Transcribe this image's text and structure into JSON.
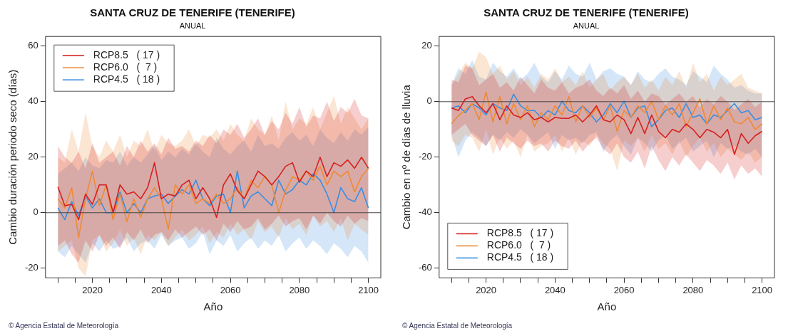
{
  "chart_data": [
    {
      "type": "line",
      "title": "SANTA CRUZ DE TENERIFE (TENERIFE)",
      "subtitle": "ANUAL",
      "xlabel": "Año",
      "ylabel": "Cambio duración periodo seco (días)",
      "x": [
        2010,
        2012,
        2014,
        2016,
        2018,
        2020,
        2022,
        2024,
        2026,
        2028,
        2030,
        2032,
        2034,
        2036,
        2038,
        2040,
        2042,
        2044,
        2046,
        2048,
        2050,
        2052,
        2054,
        2056,
        2058,
        2060,
        2062,
        2064,
        2066,
        2068,
        2070,
        2072,
        2074,
        2076,
        2078,
        2080,
        2082,
        2084,
        2086,
        2088,
        2090,
        2092,
        2094,
        2096,
        2098,
        2100
      ],
      "xlim": [
        2006.4,
        2103.6
      ],
      "xticks": [
        {
          "value": 2010,
          "label": null
        },
        {
          "value": 2015,
          "label": null
        },
        2020,
        {
          "value": 2025,
          "label": null
        },
        {
          "value": 2030,
          "label": null
        },
        {
          "value": 2035,
          "label": null
        },
        2040,
        {
          "value": 2045,
          "label": null
        },
        {
          "value": 2050,
          "label": null
        },
        {
          "value": 2055,
          "label": null
        },
        2060,
        {
          "value": 2065,
          "label": null
        },
        {
          "value": 2070,
          "label": null
        },
        {
          "value": 2075,
          "label": null
        },
        2080,
        {
          "value": 2085,
          "label": null
        },
        {
          "value": 2090,
          "label": null
        },
        {
          "value": 2095,
          "label": null
        },
        2100
      ],
      "ylim": [
        -23.5,
        63.5
      ],
      "yticks": [
        -20,
        0,
        20,
        40,
        60
      ],
      "grid": false,
      "legend": "top left",
      "line_style": "solid",
      "marker": "none",
      "ref_lines": [
        {
          "axis": "y",
          "value": 0,
          "color": "#444444"
        }
      ],
      "annotations": [
        "© Agencia Estatal de Meteorología"
      ],
      "series": [
        {
          "name": "RCP8.5   ( 17 )",
          "color": "#d62020",
          "values": [
            9.3,
            2.5,
            3,
            -2.5,
            6.7,
            3,
            10,
            10,
            0,
            10,
            6.7,
            7.5,
            5,
            9,
            18,
            5,
            6.7,
            6,
            10,
            11.7,
            5,
            9,
            5,
            -1.7,
            10,
            14,
            8,
            5,
            10,
            15,
            13,
            10,
            13,
            16.7,
            18,
            11,
            15,
            13,
            20,
            13,
            18,
            16.7,
            19,
            16,
            20,
            16
          ],
          "upper": [
            24,
            20,
            18,
            22,
            16,
            25,
            18,
            20,
            22,
            17,
            24,
            20,
            26,
            22,
            25,
            21,
            27,
            23,
            24,
            22,
            26,
            24,
            28,
            25,
            30,
            28,
            32,
            27,
            30,
            34,
            28,
            33,
            30,
            36,
            32,
            38,
            31,
            35,
            34,
            40,
            33,
            38,
            36,
            41,
            35,
            34
          ],
          "lower": [
            -12,
            -10,
            -15,
            -18,
            -10,
            -14,
            -8,
            -12,
            -9,
            -13,
            -7,
            -10,
            -6,
            -11,
            -8,
            -7,
            -10,
            -6,
            -9,
            -7,
            -5,
            -8,
            -6,
            -10,
            -4,
            -7,
            -3,
            -6,
            -5,
            -2,
            -6,
            -4,
            -1,
            -5,
            -3,
            -2,
            -6,
            -1,
            -4,
            0,
            -3,
            -5,
            -1,
            -4,
            -2,
            -3
          ]
        },
        {
          "name": "RCP6.0   (  7 )",
          "color": "#ee8a35",
          "values": [
            5,
            1.7,
            9,
            -9,
            5,
            15,
            2.5,
            10,
            -2.5,
            6.7,
            -3.3,
            5,
            -1.7,
            5,
            9,
            5,
            -6,
            10,
            6.7,
            10,
            3.3,
            5,
            3.3,
            6.7,
            3.3,
            5,
            9,
            5,
            11.7,
            9,
            13,
            10,
            0,
            8,
            13,
            11.7,
            15,
            11.7,
            16.7,
            10,
            15,
            13,
            15,
            7.5,
            13,
            16
          ],
          "upper": [
            20,
            18,
            30,
            22,
            36,
            24,
            20,
            26,
            22,
            28,
            20,
            26,
            24,
            30,
            22,
            28,
            25,
            24,
            26,
            30,
            24,
            28,
            27,
            30,
            26,
            32,
            28,
            26,
            34,
            30,
            28,
            35,
            26,
            40,
            30,
            34,
            32,
            38,
            30,
            36,
            42,
            32,
            38,
            34,
            30,
            34
          ],
          "lower": [
            -14,
            -12,
            -10,
            -20,
            -23,
            -10,
            -8,
            -14,
            -11,
            -6,
            -12,
            -9,
            -15,
            -8,
            -10,
            -7,
            -12,
            -9,
            -6,
            -10,
            -8,
            -5,
            -11,
            -7,
            -9,
            -4,
            -8,
            -6,
            -10,
            -3,
            -7,
            -5,
            -9,
            -2,
            -6,
            -4,
            -8,
            -1,
            -5,
            -3,
            -7,
            -2,
            -10,
            -4,
            -6,
            -8
          ]
        },
        {
          "name": "RCP4.5   ( 18 )",
          "color": "#3a8ee0",
          "values": [
            1.7,
            -2.5,
            4,
            -1,
            6,
            1.7,
            5,
            0,
            0,
            7.5,
            0,
            3.3,
            0,
            5,
            6,
            6.7,
            3.3,
            6,
            8.3,
            6.7,
            11.7,
            5,
            2.5,
            6,
            6.7,
            0,
            15,
            1.7,
            6,
            7.5,
            5,
            2.5,
            11.7,
            6.7,
            8.3,
            11.7,
            10,
            14,
            11.7,
            6.7,
            0,
            9,
            5,
            4,
            9,
            1.7
          ],
          "upper": [
            14,
            16,
            18,
            15,
            20,
            17,
            16,
            19,
            18,
            22,
            17,
            20,
            18,
            21,
            24,
            19,
            22,
            20,
            23,
            21,
            25,
            22,
            20,
            27,
            23,
            21,
            24,
            26,
            22,
            28,
            24,
            25,
            23,
            27,
            29,
            26,
            28,
            24,
            30,
            27,
            25,
            29,
            26,
            30,
            28,
            31
          ],
          "lower": [
            -14,
            -16,
            -12,
            -15,
            -18,
            -11,
            -14,
            -10,
            -13,
            -12,
            -9,
            -14,
            -11,
            -10,
            -13,
            -8,
            -12,
            -10,
            -9,
            -13,
            -11,
            -7,
            -15,
            -10,
            -12,
            -8,
            -14,
            -11,
            -9,
            -13,
            -10,
            -12,
            -8,
            -14,
            -11,
            -9,
            -13,
            -10,
            -12,
            -15,
            -11,
            -13,
            -16,
            -12,
            -14,
            -18
          ]
        }
      ]
    },
    {
      "type": "line",
      "title": "SANTA CRUZ DE TENERIFE (TENERIFE)",
      "subtitle": "ANUAL",
      "xlabel": "Año",
      "ylabel": "Cambio en nº de días de lluvia",
      "x": [
        2010,
        2012,
        2014,
        2016,
        2018,
        2020,
        2022,
        2024,
        2026,
        2028,
        2030,
        2032,
        2034,
        2036,
        2038,
        2040,
        2042,
        2044,
        2046,
        2048,
        2050,
        2052,
        2054,
        2056,
        2058,
        2060,
        2062,
        2064,
        2066,
        2068,
        2070,
        2072,
        2074,
        2076,
        2078,
        2080,
        2082,
        2084,
        2086,
        2088,
        2090,
        2092,
        2094,
        2096,
        2098,
        2100
      ],
      "xlim": [
        2006.4,
        2103.6
      ],
      "xticks": [
        {
          "value": 2010,
          "label": null
        },
        {
          "value": 2015,
          "label": null
        },
        2020,
        {
          "value": 2025,
          "label": null
        },
        {
          "value": 2030,
          "label": null
        },
        {
          "value": 2035,
          "label": null
        },
        2040,
        {
          "value": 2045,
          "label": null
        },
        {
          "value": 2050,
          "label": null
        },
        {
          "value": 2055,
          "label": null
        },
        2060,
        {
          "value": 2065,
          "label": null
        },
        {
          "value": 2070,
          "label": null
        },
        {
          "value": 2075,
          "label": null
        },
        2080,
        {
          "value": 2085,
          "label": null
        },
        {
          "value": 2090,
          "label": null
        },
        {
          "value": 2095,
          "label": null
        },
        2100
      ],
      "ylim": [
        -63.5,
        23.5
      ],
      "yticks": [
        -60,
        -40,
        -20,
        0,
        20
      ],
      "grid": false,
      "legend": "bottom left",
      "line_style": "solid",
      "marker": "none",
      "ref_lines": [
        {
          "axis": "y",
          "value": 0,
          "color": "#444444"
        }
      ],
      "annotations": [
        "© Agencia Estatal de Meteorología"
      ],
      "series": [
        {
          "name": "RCP8.5   ( 17 )",
          "color": "#d62020",
          "values": [
            -2.3,
            -3.2,
            1,
            1.8,
            -1.5,
            -4,
            -0.7,
            -6.5,
            -1.5,
            -4.8,
            -5.7,
            -4,
            -6.5,
            -5.7,
            -7.3,
            -5.7,
            -6,
            -6,
            -4.8,
            -7.3,
            -4.8,
            -1.5,
            -6.5,
            -7.3,
            -4.8,
            -6.5,
            -11.5,
            -5.7,
            -11.5,
            -4.8,
            -10.7,
            -13,
            -10,
            -11,
            -8,
            -10,
            -13,
            -10,
            -11,
            -13,
            -10,
            -19,
            -11.5,
            -15,
            -12.3,
            -10.7
          ],
          "upper": [
            8,
            7,
            13,
            12,
            6,
            8,
            10,
            5,
            7,
            4,
            9,
            6,
            3,
            8,
            5,
            4,
            7,
            3,
            5,
            6,
            8,
            4,
            2,
            5,
            3,
            6,
            1,
            4,
            0,
            3,
            2,
            -1,
            1,
            3,
            0,
            2,
            -2,
            1,
            -1,
            2,
            0,
            -3,
            -1,
            1,
            -2,
            0
          ],
          "lower": [
            -12,
            -10,
            -8,
            -12,
            -14,
            -16,
            -12,
            -18,
            -13,
            -15,
            -17,
            -14,
            -16,
            -15,
            -18,
            -14,
            -16,
            -17,
            -14,
            -18,
            -15,
            -13,
            -17,
            -19,
            -15,
            -20,
            -22,
            -18,
            -24,
            -16,
            -21,
            -25,
            -20,
            -23,
            -19,
            -22,
            -25,
            -21,
            -23,
            -26,
            -22,
            -28,
            -23,
            -26,
            -24,
            -27
          ]
        },
        {
          "name": "RCP6.0   (  7 )",
          "color": "#ee8a35",
          "values": [
            -8,
            -5,
            -3,
            -0.7,
            -6.5,
            3.5,
            -7.3,
            1.8,
            -8,
            -0.7,
            -6.5,
            -1.5,
            -9,
            -4,
            -6.5,
            -1.5,
            -4.8,
            1.8,
            -7.3,
            -1.5,
            -5.7,
            -2.3,
            -6.5,
            -1.5,
            -10.7,
            -3.2,
            -5.7,
            -1.5,
            -4,
            0.2,
            -6.5,
            -1.5,
            -4.8,
            -0.7,
            -9,
            -4,
            1,
            -8,
            -1.5,
            -6.5,
            -2.3,
            -7.3,
            -8,
            -5.7,
            -10,
            -8
          ],
          "upper": [
            6,
            10,
            14,
            12,
            18,
            16,
            10,
            13,
            8,
            11,
            6,
            9,
            5,
            10,
            8,
            12,
            7,
            9,
            6,
            11,
            5,
            8,
            10,
            4,
            7,
            9,
            6,
            10,
            5,
            8,
            4,
            9,
            6,
            11,
            5,
            14,
            7,
            10,
            4,
            9,
            6,
            8,
            10,
            5,
            4,
            3
          ],
          "lower": [
            -14,
            -16,
            -12,
            -13,
            -18,
            -10,
            -19,
            -13,
            -17,
            -14,
            -20,
            -12,
            -18,
            -16,
            -15,
            -12,
            -18,
            -13,
            -19,
            -14,
            -16,
            -12,
            -15,
            -17,
            -25,
            -14,
            -16,
            -13,
            -18,
            -12,
            -17,
            -15,
            -19,
            -14,
            -20,
            -16,
            -13,
            -18,
            -15,
            -20,
            -17,
            -19,
            -21,
            -18,
            -22,
            -20
          ]
        },
        {
          "name": "RCP4.5   ( 18 )",
          "color": "#3a8ee0",
          "values": [
            -2.3,
            -1.5,
            -4,
            -0.7,
            -2.3,
            -4.8,
            -0.7,
            -2.3,
            -3.2,
            2.7,
            -1.5,
            -3.2,
            -3.2,
            -5.7,
            -3.2,
            -4.8,
            0.2,
            -3.2,
            -4,
            -1.5,
            -4,
            -7.3,
            -4.8,
            -0.7,
            -4,
            0.2,
            -5.7,
            -2.3,
            -1.5,
            -9,
            -6.5,
            -3.2,
            -2.3,
            -5.7,
            -0.7,
            -5.7,
            -4.8,
            -8,
            -4.8,
            -5.7,
            -3.2,
            -0.7,
            -4,
            -3.2,
            -6.5,
            -5.7
          ],
          "upper": [
            6,
            12,
            10,
            15,
            9,
            8,
            14,
            11,
            9,
            12,
            8,
            10,
            14,
            9,
            7,
            11,
            8,
            13,
            10,
            9,
            14,
            8,
            11,
            12,
            10,
            9,
            6,
            11,
            8,
            7,
            10,
            12,
            9,
            8,
            6,
            11,
            9,
            7,
            13,
            10,
            8,
            5,
            6,
            4,
            3,
            3
          ],
          "lower": [
            -12,
            -20,
            -14,
            -11,
            -13,
            -16,
            -12,
            -14,
            -11,
            -13,
            -10,
            -12,
            -15,
            -13,
            -11,
            -17,
            -12,
            -14,
            -13,
            -15,
            -12,
            -11,
            -18,
            -14,
            -12,
            -16,
            -19,
            -13,
            -15,
            -18,
            -14,
            -12,
            -17,
            -15,
            -13,
            -18,
            -16,
            -14,
            -20,
            -15,
            -17,
            -16,
            -18,
            -19,
            -17,
            -20
          ]
        }
      ]
    }
  ]
}
